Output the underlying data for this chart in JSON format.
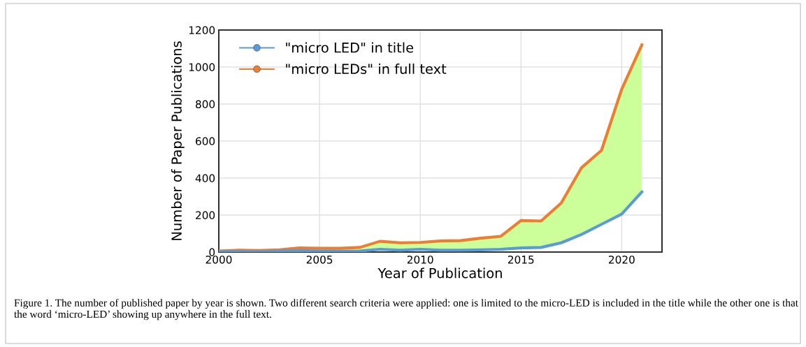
{
  "chart_data": {
    "type": "line",
    "xlabel": "Year of Publication",
    "ylabel": "Number of Paper Publications",
    "x": [
      2000,
      2001,
      2002,
      2003,
      2004,
      2005,
      2006,
      2007,
      2008,
      2009,
      2010,
      2011,
      2012,
      2013,
      2014,
      2015,
      2016,
      2017,
      2018,
      2019,
      2020,
      2021
    ],
    "series": [
      {
        "name": "\"micro LED\" in title",
        "color": "#5b9bd5",
        "values": [
          2,
          3,
          2,
          5,
          8,
          5,
          4,
          5,
          15,
          10,
          15,
          10,
          10,
          12,
          15,
          22,
          25,
          50,
          95,
          150,
          205,
          325
        ]
      },
      {
        "name": "\"micro LEDs\" in full text",
        "color": "#ed7d31",
        "values": [
          5,
          10,
          8,
          12,
          22,
          20,
          20,
          25,
          58,
          50,
          52,
          60,
          62,
          75,
          85,
          170,
          168,
          265,
          455,
          550,
          880,
          1120
        ],
        "lower": [
          2,
          3,
          2,
          5,
          8,
          5,
          4,
          5,
          15,
          10,
          15,
          10,
          10,
          12,
          15,
          22,
          25,
          50,
          95,
          150,
          205,
          325
        ],
        "upper": [
          5,
          10,
          8,
          12,
          22,
          20,
          20,
          25,
          58,
          50,
          52,
          60,
          62,
          75,
          85,
          170,
          168,
          265,
          455,
          550,
          880,
          1120
        ]
      }
    ],
    "xlim": [
      2000,
      2022
    ],
    "xticks": [
      2000,
      2005,
      2010,
      2015,
      2020
    ],
    "ylim": [
      0,
      1200
    ],
    "yticks": [
      0,
      200,
      400,
      600,
      800,
      1000,
      1200
    ],
    "grid": true,
    "legend": "top left",
    "annotations": [
      "Figure 1. The number of published paper by year is shown. Two different search criteria were applied: one is limited to the micro-LED is included in the title while the other one is that the word ‘micro-LED’ showing up anywhere in the full text."
    ]
  }
}
